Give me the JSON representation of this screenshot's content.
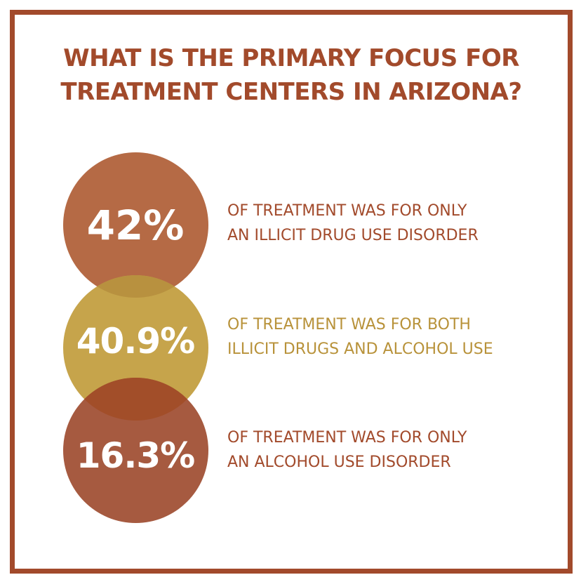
{
  "title": {
    "line1": "WHAT IS THE PRIMARY FOCUS FOR",
    "line2": "TREATMENT CENTERS IN ARIZONA?"
  },
  "stats": [
    {
      "value": "42%",
      "percent": 42,
      "line1": "OF TREATMENT WAS FOR ONLY",
      "line2": "AN ILLICIT DRUG USE DISORDER",
      "color": "#b56a45",
      "text_color": "#a24a2b"
    },
    {
      "value": "40.9%",
      "percent": 40.9,
      "line1": "OF TREATMENT WAS FOR BOTH",
      "line2": "ILLICIT DRUGS AND ALCOHOL USE",
      "color": "#c6a44b",
      "text_color": "#b8923a"
    },
    {
      "value": "16.3%",
      "percent": 16.3,
      "line1": "OF TREATMENT WAS FOR ONLY",
      "line2": "AN ALCOHOL USE DISORDER",
      "color": "#a65a40",
      "text_color": "#a24a2b"
    }
  ],
  "colors": {
    "frame": "#a24a2b",
    "overlap_top": "#b8913f",
    "overlap_bottom": "#a24e29"
  }
}
